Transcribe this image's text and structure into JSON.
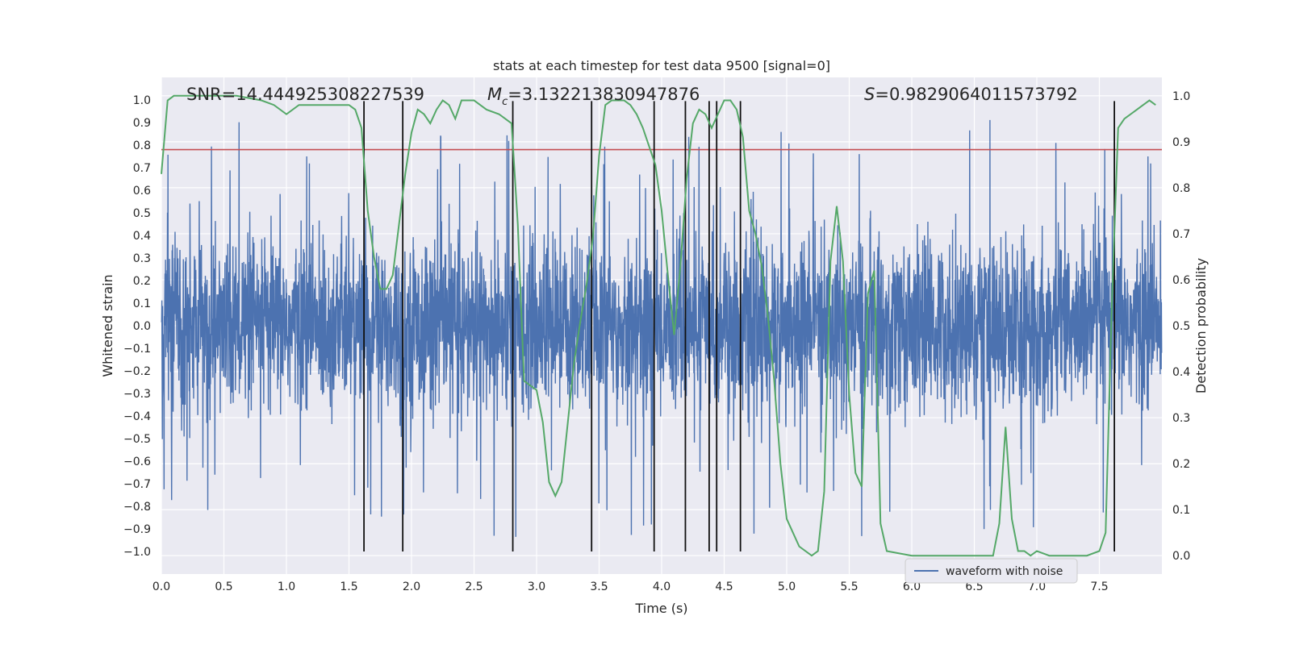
{
  "chart_data": {
    "type": "line",
    "title": "stats at each timestep for test data 9500 [signal=0]",
    "xlabel": "Time (s)",
    "ylabel": "Whitened strain",
    "y2label": "Detection probability",
    "xlim": [
      0,
      8
    ],
    "ylim": [
      -1.1,
      1.1
    ],
    "y2lim": [
      -0.04,
      1.04
    ],
    "xticks": [
      "0.0",
      "0.5",
      "1.0",
      "1.5",
      "2.0",
      "2.5",
      "3.0",
      "3.5",
      "4.0",
      "4.5",
      "5.0",
      "5.5",
      "6.0",
      "6.5",
      "7.0",
      "7.5"
    ],
    "yticks": [
      "1.0",
      "0.9",
      "0.8",
      "0.7",
      "0.6",
      "0.5",
      "0.4",
      "0.3",
      "0.2",
      "0.1",
      "0.0",
      "−0.1",
      "−0.2",
      "−0.3",
      "−0.4",
      "−0.5",
      "−0.6",
      "−0.7",
      "−0.8",
      "−0.9",
      "−1.0"
    ],
    "y2ticks": [
      "1.0",
      "0.9",
      "0.8",
      "0.7",
      "0.6",
      "0.5",
      "0.4",
      "0.3",
      "0.2",
      "0.1",
      "0.0"
    ],
    "annotations": {
      "snr": "SNR=14.444925308227539",
      "mc_symbol": "M",
      "mc_sub": "c",
      "mc_value": "=3.132213830947876",
      "s_symbol": "S",
      "s_value": "=0.9829064011573792"
    },
    "threshold_strain": 0.78,
    "event_times": [
      1.62,
      1.93,
      2.81,
      3.44,
      3.94,
      4.19,
      4.38,
      4.44,
      4.63,
      7.62
    ],
    "legend": {
      "label": "waveform with noise",
      "position": "lower-right"
    },
    "waveform": {
      "name": "waveform with noise",
      "color": "#4c72b0",
      "duration": 8,
      "samples": 4096,
      "core_amplitude": 0.3,
      "peak_amplitude_max": 0.93,
      "peak_amplitude_min": -0.95
    },
    "detection_probability": {
      "color": "#55a868",
      "x": [
        0.0,
        0.05,
        0.1,
        0.2,
        0.4,
        0.6,
        0.8,
        0.9,
        1.0,
        1.1,
        1.2,
        1.3,
        1.4,
        1.5,
        1.55,
        1.6,
        1.65,
        1.7,
        1.75,
        1.8,
        1.85,
        1.9,
        1.95,
        2.0,
        2.05,
        2.1,
        2.15,
        2.2,
        2.25,
        2.3,
        2.35,
        2.4,
        2.45,
        2.5,
        2.6,
        2.7,
        2.75,
        2.8,
        2.85,
        2.9,
        2.95,
        3.0,
        3.05,
        3.1,
        3.15,
        3.2,
        3.25,
        3.3,
        3.35,
        3.4,
        3.45,
        3.5,
        3.55,
        3.6,
        3.65,
        3.7,
        3.75,
        3.8,
        3.85,
        3.9,
        3.95,
        4.0,
        4.05,
        4.1,
        4.15,
        4.2,
        4.25,
        4.3,
        4.35,
        4.4,
        4.45,
        4.5,
        4.55,
        4.6,
        4.65,
        4.7,
        4.75,
        4.8,
        4.85,
        4.9,
        4.95,
        5.0,
        5.1,
        5.2,
        5.25,
        5.3,
        5.35,
        5.4,
        5.45,
        5.5,
        5.55,
        5.6,
        5.65,
        5.7,
        5.75,
        5.8,
        6.0,
        6.2,
        6.4,
        6.5,
        6.6,
        6.65,
        6.7,
        6.75,
        6.8,
        6.85,
        6.9,
        6.95,
        7.0,
        7.1,
        7.2,
        7.3,
        7.4,
        7.5,
        7.55,
        7.6,
        7.65,
        7.7,
        7.75,
        7.8,
        7.85,
        7.9,
        7.95
      ],
      "y": [
        0.83,
        0.99,
        1.0,
        1.0,
        1.0,
        1.0,
        0.99,
        0.98,
        0.96,
        0.98,
        0.98,
        0.98,
        0.98,
        0.98,
        0.97,
        0.93,
        0.75,
        0.65,
        0.58,
        0.58,
        0.61,
        0.72,
        0.83,
        0.92,
        0.97,
        0.96,
        0.94,
        0.97,
        0.99,
        0.98,
        0.95,
        0.99,
        0.99,
        0.99,
        0.97,
        0.96,
        0.95,
        0.94,
        0.72,
        0.38,
        0.37,
        0.36,
        0.29,
        0.16,
        0.13,
        0.16,
        0.29,
        0.42,
        0.51,
        0.59,
        0.69,
        0.87,
        0.98,
        0.99,
        0.99,
        0.99,
        0.98,
        0.96,
        0.93,
        0.89,
        0.85,
        0.75,
        0.61,
        0.48,
        0.63,
        0.82,
        0.94,
        0.97,
        0.96,
        0.93,
        0.96,
        0.99,
        0.99,
        0.97,
        0.91,
        0.75,
        0.7,
        0.63,
        0.52,
        0.38,
        0.2,
        0.08,
        0.02,
        0.0,
        0.01,
        0.14,
        0.64,
        0.76,
        0.64,
        0.35,
        0.18,
        0.15,
        0.57,
        0.62,
        0.07,
        0.01,
        0.0,
        0.0,
        0.0,
        0.0,
        0.0,
        0.0,
        0.07,
        0.28,
        0.08,
        0.01,
        0.01,
        0.0,
        0.01,
        0.0,
        0.0,
        0.0,
        0.0,
        0.01,
        0.05,
        0.55,
        0.93,
        0.95,
        0.96,
        0.97,
        0.98,
        0.99,
        0.98
      ]
    }
  }
}
